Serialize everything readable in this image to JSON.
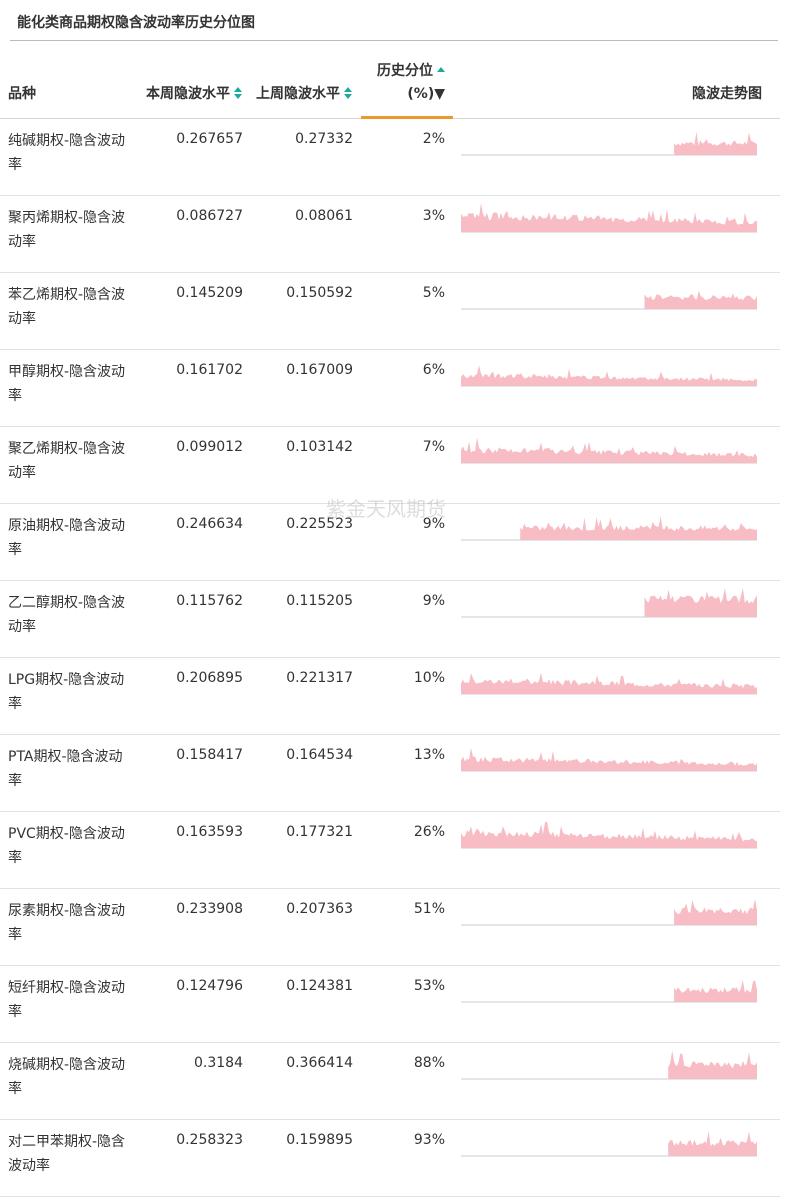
{
  "title": "能化类商品期权隐含波动率历史分位图",
  "watermark": "紫金天风期货",
  "header": {
    "name": "品种",
    "current": "本周隐波水平",
    "previous": "上周隐波水平",
    "percentile": "历史分位(%)▼",
    "trend": "隐波走势图"
  },
  "colors": {
    "spark_fill": "#f7bcc4",
    "baseline": "#c9ccd6",
    "sort_arrow": "#1ea9a0",
    "active_sort": "#e89a2e"
  },
  "rows": [
    {
      "name": "纯碱期权-隐含波动率",
      "current": "0.267657",
      "previous": "0.27332",
      "percentile": "2%",
      "spark": {
        "start": 0.72,
        "level": 0.45
      }
    },
    {
      "name": "聚丙烯期权-隐含波动率",
      "current": "0.086727",
      "previous": "0.08061",
      "percentile": "3%",
      "spark": {
        "start": 0.0,
        "level": 0.55
      }
    },
    {
      "name": "苯乙烯期权-隐含波动率",
      "current": "0.145209",
      "previous": "0.150592",
      "percentile": "5%",
      "spark": {
        "start": 0.62,
        "level": 0.45
      }
    },
    {
      "name": "甲醇期权-隐含波动率",
      "current": "0.161702",
      "previous": "0.167009",
      "percentile": "6%",
      "spark": {
        "start": 0.0,
        "level": 0.35
      }
    },
    {
      "name": "聚乙烯期权-隐含波动率",
      "current": "0.099012",
      "previous": "0.103142",
      "percentile": "7%",
      "spark": {
        "start": 0.0,
        "level": 0.45
      }
    },
    {
      "name": "原油期权-隐含波动率",
      "current": "0.246634",
      "previous": "0.225523",
      "percentile": "9%",
      "spark": {
        "start": 0.2,
        "level": 0.45
      }
    },
    {
      "name": "乙二醇期权-隐含波动率",
      "current": "0.115762",
      "previous": "0.115205",
      "percentile": "9%",
      "spark": {
        "start": 0.62,
        "level": 0.65
      }
    },
    {
      "name": "LPG期权-隐含波动率",
      "current": "0.206895",
      "previous": "0.221317",
      "percentile": "10%",
      "spark": {
        "start": 0.0,
        "level": 0.45
      }
    },
    {
      "name": "PTA期权-隐含波动率",
      "current": "0.158417",
      "previous": "0.164534",
      "percentile": "13%",
      "spark": {
        "start": 0.0,
        "level": 0.4
      }
    },
    {
      "name": "PVC期权-隐含波动率",
      "current": "0.163593",
      "previous": "0.177321",
      "percentile": "26%",
      "spark": {
        "start": 0.0,
        "level": 0.5
      }
    },
    {
      "name": "尿素期权-隐含波动率",
      "current": "0.233908",
      "previous": "0.207363",
      "percentile": "51%",
      "spark": {
        "start": 0.72,
        "level": 0.55
      }
    },
    {
      "name": "短纤期权-隐含波动率",
      "current": "0.124796",
      "previous": "0.124381",
      "percentile": "53%",
      "spark": {
        "start": 0.72,
        "level": 0.45
      }
    },
    {
      "name": "烧碱期权-隐含波动率",
      "current": "0.3184",
      "previous": "0.366414",
      "percentile": "88%",
      "spark": {
        "start": 0.7,
        "level": 0.55
      }
    },
    {
      "name": "对二甲苯期权-隐含波动率",
      "current": "0.258323",
      "previous": "0.159895",
      "percentile": "93%",
      "spark": {
        "start": 0.7,
        "level": 0.5
      }
    }
  ]
}
